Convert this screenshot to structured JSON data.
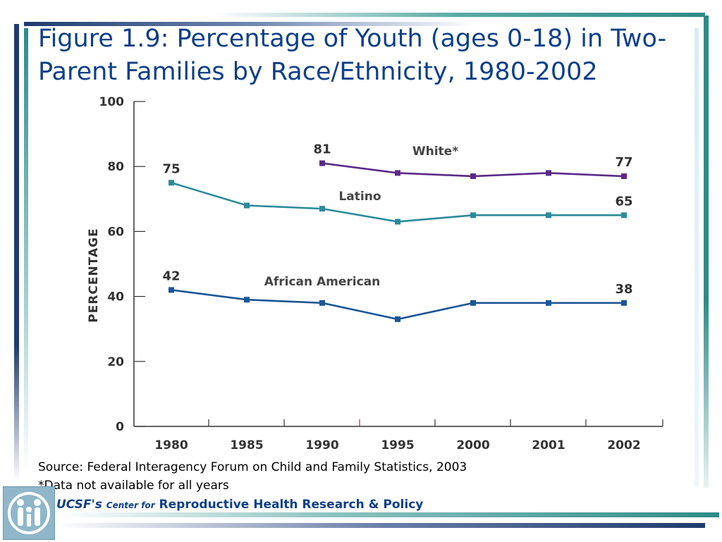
{
  "slide": {
    "title": "Figure 1.9: Percentage of Youth (ages 0-18) in Two-Parent Families by Race/Ethnicity, 1980-2002",
    "source_note": "Source: Federal Interagency Forum on Child and Family Statistics, 2003",
    "data_note": "*Data not available for all years",
    "footer": {
      "org": "UCSF's",
      "center_for": "Center for",
      "program": "Reproductive Health Research & Policy"
    },
    "colors": {
      "title": "#0e3f8a",
      "stripe_dark": "#1f3b6e",
      "stripe_teal": "#2e8b87",
      "logo_bg": "#8fb7c9"
    },
    "logo_icon": "family-figures-icon"
  },
  "chart_data": {
    "type": "line",
    "x": [
      "1980",
      "1985",
      "1990",
      "1995",
      "2000",
      "2001",
      "2002"
    ],
    "ylabel": "PERCENTAGE",
    "xlabel": "",
    "ylim": [
      0,
      100
    ],
    "yticks": [
      0,
      20,
      40,
      60,
      80,
      100
    ],
    "grid": false,
    "series": [
      {
        "name": "White*",
        "color": "#5a2a86",
        "values": [
          null,
          null,
          81,
          78,
          77,
          78,
          77
        ],
        "data_labels": [
          {
            "index": 2,
            "text": "81"
          },
          {
            "index": 6,
            "text": "77"
          }
        ]
      },
      {
        "name": "Latino",
        "color": "#2b8a9a",
        "values": [
          75,
          68,
          67,
          63,
          65,
          65,
          65
        ],
        "data_labels": [
          {
            "index": 0,
            "text": "75"
          },
          {
            "index": 6,
            "text": "65"
          }
        ]
      },
      {
        "name": "African American",
        "color": "#1a5696",
        "values": [
          42,
          39,
          38,
          33,
          38,
          38,
          38
        ],
        "data_labels": [
          {
            "index": 0,
            "text": "42"
          },
          {
            "index": 6,
            "text": "38"
          }
        ]
      }
    ]
  }
}
